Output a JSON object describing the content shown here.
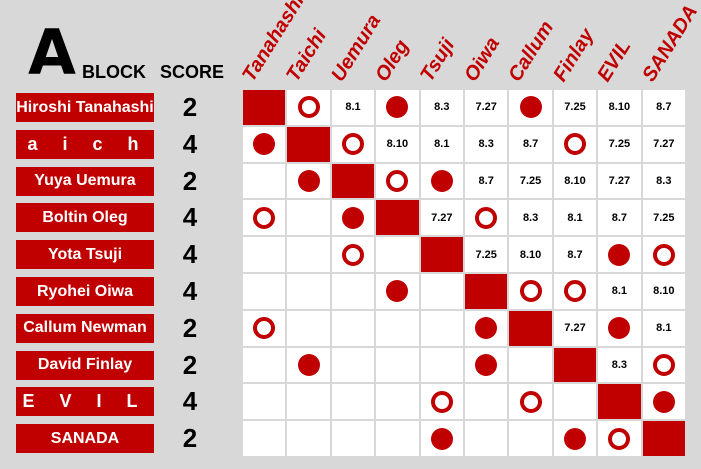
{
  "header": {
    "letter": "A",
    "block": "BLOCK",
    "score": "SCORE"
  },
  "columns": [
    "Tanahashi",
    "Taichi",
    "Uemura",
    "Oleg",
    "Tsuji",
    "Oiwa",
    "Callum",
    "Finlay",
    "EVIL",
    "SANADA"
  ],
  "rows": [
    {
      "name": "Hiroshi Tanahashi",
      "score": "2",
      "cells": [
        "X",
        "W",
        "8.1",
        "L",
        "8.3",
        "7.27",
        "L",
        "7.25",
        "8.10",
        "8.7"
      ]
    },
    {
      "name": "T a i c h i",
      "score": "4",
      "cells": [
        "L",
        "X",
        "W",
        "8.10",
        "8.1",
        "8.3",
        "8.7",
        "W",
        "7.25",
        "7.27"
      ]
    },
    {
      "name": "Yuya Uemura",
      "score": "2",
      "cells": [
        "",
        "L",
        "X",
        "W",
        "L",
        "8.7",
        "7.25",
        "8.10",
        "7.27",
        "8.3"
      ]
    },
    {
      "name": "Boltin Oleg",
      "score": "4",
      "cells": [
        "W",
        "",
        "L",
        "X",
        "7.27",
        "W",
        "8.3",
        "8.1",
        "8.7",
        "7.25"
      ]
    },
    {
      "name": "Yota Tsuji",
      "score": "4",
      "cells": [
        "",
        "",
        "W",
        "",
        "X",
        "7.25",
        "8.10",
        "8.7",
        "L",
        "W"
      ]
    },
    {
      "name": "Ryohei Oiwa",
      "score": "4",
      "cells": [
        "",
        "",
        "",
        "L",
        "",
        "X",
        "W",
        "W",
        "8.1",
        "8.10"
      ]
    },
    {
      "name": "Callum Newman",
      "score": "2",
      "cells": [
        "W",
        "",
        "",
        "",
        "",
        "L",
        "X",
        "7.27",
        "L",
        "8.1"
      ]
    },
    {
      "name": "David Finlay",
      "score": "2",
      "cells": [
        "",
        "L",
        "",
        "",
        "",
        "L",
        "",
        "X",
        "8.3",
        "W"
      ]
    },
    {
      "name": "E V I L",
      "score": "4",
      "cells": [
        "",
        "",
        "",
        "",
        "W",
        "",
        "W",
        "",
        "X",
        "L"
      ]
    },
    {
      "name": "SANADA",
      "score": "2",
      "cells": [
        "",
        "",
        "",
        "",
        "L",
        "",
        "",
        "L",
        "W",
        "X"
      ]
    }
  ]
}
